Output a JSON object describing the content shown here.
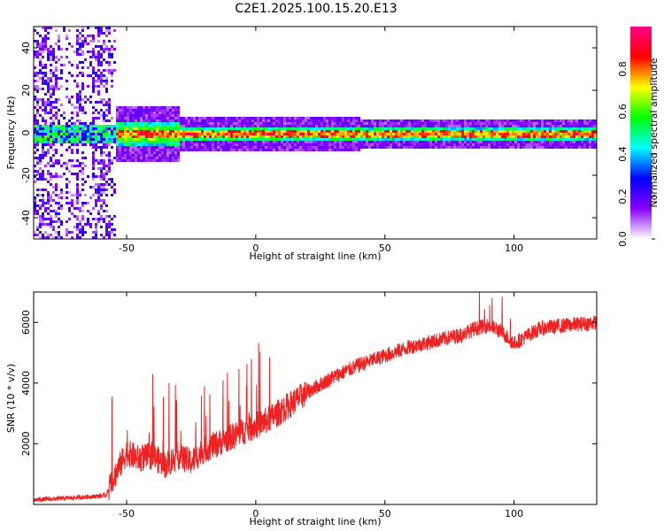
{
  "title": "C2E1.2025.100.15.20.E13",
  "chart_data": [
    {
      "type": "heatmap",
      "xlabel": "Height of straight line (km)",
      "ylabel": "Frequency (Hz)",
      "xlim": [
        -86,
        132
      ],
      "ylim": [
        -50,
        50
      ],
      "x_ticks": [
        "-50",
        "0",
        "50",
        "100"
      ],
      "y_ticks": [
        "-40",
        "-20",
        "0",
        "20",
        "40"
      ],
      "colorbar": {
        "label": "Normalized spectral amplitude",
        "range": [
          0,
          1
        ],
        "ticks": [
          "0.0",
          "0.2",
          "0.4",
          "0.6",
          "0.8"
        ],
        "colors": [
          "#ffffff",
          "#8800ff",
          "#0000ff",
          "#00ffff",
          "#00ff00",
          "#ffff00",
          "#ff0000",
          "#ff0088"
        ]
      },
      "ridge_frequency_hz": 0,
      "notes_visible": "strong ridge near 0 Hz; noisy speckle for x < -55 km"
    },
    {
      "type": "line",
      "xlabel": "Height of straight line (km)",
      "ylabel": "SNR (10 * v/v)",
      "xlim": [
        -86,
        132
      ],
      "ylim": [
        0,
        7000
      ],
      "x_ticks": [
        "-50",
        "0",
        "50",
        "100"
      ],
      "y_ticks": [
        "2000",
        "4000",
        "6000"
      ],
      "color": "#ee2222",
      "series": [
        {
          "x": [
            -86,
            -75,
            -65,
            -58,
            -55,
            -50,
            -45,
            -40,
            -35,
            -30,
            -25,
            -20,
            -15,
            -10,
            -5,
            0,
            5,
            10,
            15,
            20,
            30,
            40,
            50,
            60,
            70,
            80,
            85,
            90,
            95,
            100,
            110,
            120,
            132
          ],
          "values": [
            150,
            200,
            250,
            300,
            900,
            1700,
            1500,
            1600,
            1300,
            1600,
            1400,
            1800,
            2000,
            2200,
            2400,
            2600,
            2800,
            3100,
            3400,
            3700,
            4200,
            4600,
            4900,
            5200,
            5400,
            5600,
            5800,
            5900,
            5700,
            5300,
            5800,
            5900,
            6000
          ]
        }
      ]
    }
  ]
}
